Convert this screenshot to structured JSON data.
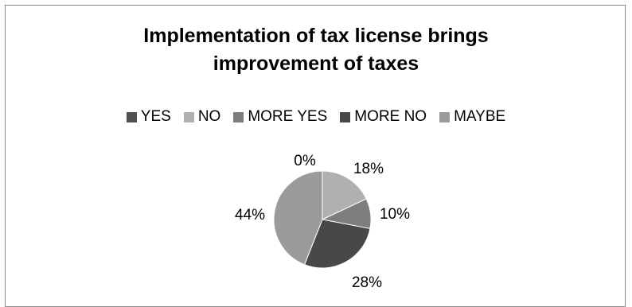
{
  "chart_data": {
    "type": "pie",
    "title": "Implementation of tax license brings improvement of taxes",
    "title_lines": [
      "Implementation of tax license brings",
      "improvement of taxes"
    ],
    "legend_position": "top",
    "categories": [
      "YES",
      "NO",
      "MORE YES",
      "MORE NO",
      "MAYBE"
    ],
    "values": [
      0,
      18,
      10,
      28,
      44
    ],
    "data_labels": [
      "0%",
      "18%",
      "10%",
      "28%",
      "44%"
    ],
    "colors": [
      "#505050",
      "#b0b0b0",
      "#7d7d7d",
      "#484848",
      "#9b9b9b"
    ]
  }
}
